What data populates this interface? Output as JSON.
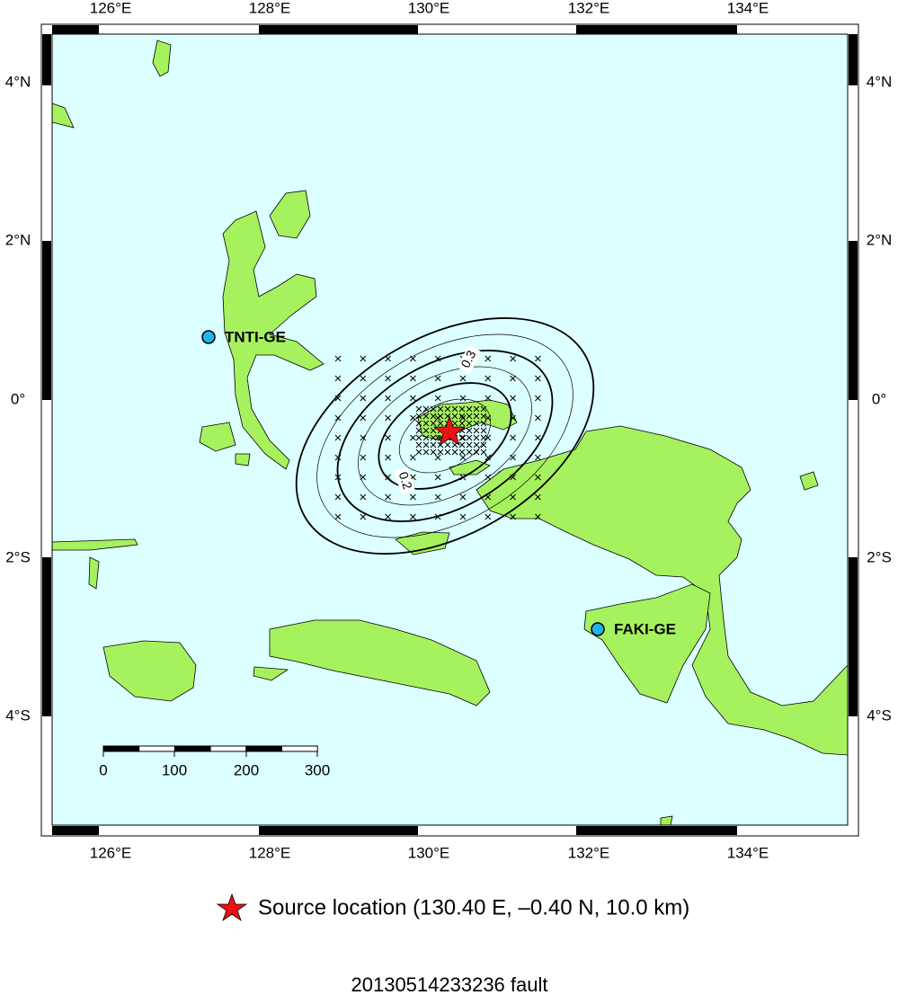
{
  "map": {
    "lon_labels": [
      "126°E",
      "128°E",
      "130°E",
      "132°E",
      "134°E"
    ],
    "lat_labels": [
      "4°N",
      "2°N",
      "0°",
      "2°S",
      "4°S"
    ],
    "stations": [
      {
        "label": "TNTI-GE"
      },
      {
        "label": "FAKI-GE"
      }
    ],
    "contour_labels": [
      "0.3",
      "0.2"
    ],
    "scale_bar": {
      "labels": [
        0,
        100,
        200,
        300
      ]
    }
  },
  "legend": {
    "text": "Source location (130.40 E, –0.40 N, 10.0 km)"
  },
  "title": "20130514233236 fault"
}
